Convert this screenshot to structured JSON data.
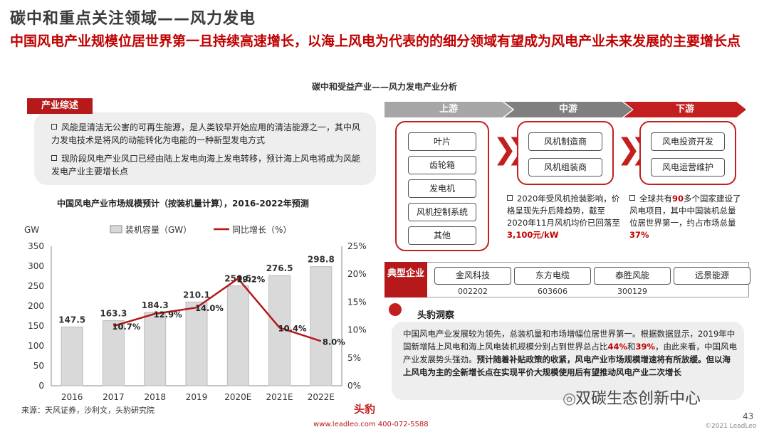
{
  "header": {
    "title": "碳中和重点关注领域——风力发电",
    "subtitle": "中国风电产业规模位居世界第一且持续高速增长，以海上风电为代表的的细分领域有望成为风电产业未来发展的主要增长点",
    "center_heading": "碳中和受益产业——风力发电产业分析"
  },
  "overview": {
    "tab": "产业综述",
    "items": [
      "风能是清洁无公害的可再生能源，是人类较早开始应用的清洁能源之一，其中风力发电技术是将风的动能转化为电能的一种新型发电方式",
      "现阶段风电产业风口已经由陆上发电向海上发电转移，预计海上风电将成为风能发电产业主要增长点"
    ]
  },
  "chart_title": "中国风电产业市场规模预计（按装机量计算），2016-2022年预测",
  "chart_data": {
    "type": "bar",
    "categories": [
      "2016",
      "2017",
      "2018",
      "2019",
      "2020E",
      "2021E",
      "2022E"
    ],
    "series": [
      {
        "name": "装机容量（GW）",
        "type": "bar",
        "values": [
          147.5,
          163.3,
          184.3,
          210.1,
          250.5,
          276.5,
          298.8
        ],
        "labels": [
          "147.5",
          "163.3",
          "184.3",
          "210.1",
          "250.5",
          "276.5",
          "298.8"
        ]
      },
      {
        "name": "同比增长（%）",
        "type": "line",
        "axis": "right",
        "values": [
          null,
          10.7,
          12.9,
          14.0,
          19.2,
          10.4,
          8.0
        ],
        "labels": [
          "",
          "10.7%",
          "12.9%",
          "14.0%",
          "19.2%",
          "10.4%",
          "8.0%"
        ]
      }
    ],
    "left_unit": "GW",
    "left_ticks": [
      "0",
      "50",
      "100",
      "150",
      "200",
      "250",
      "300",
      "350"
    ],
    "right_ticks": [
      "0%",
      "5%",
      "10%",
      "15%",
      "20%",
      "25%"
    ],
    "ylim": [
      0,
      350
    ],
    "y2lim": [
      0,
      25
    ],
    "bar_color": "#d9d9d9",
    "line_color": "#b5191a"
  },
  "source": "来源：天风证券，沙利文，头豹研究院",
  "chain": {
    "stages": [
      "上游",
      "中游",
      "下游"
    ],
    "upstream": [
      "叶片",
      "齿轮箱",
      "发电机",
      "风机控制系统",
      "其他"
    ],
    "midstream": [
      "风机制造商",
      "风机组装商"
    ],
    "downstream": [
      "风电投资开发",
      "风电运营维护"
    ],
    "mid_note": {
      "a": "2020年受风机抢装影响，价格呈现先升后降趋势，截至2020年11月风机均价已回落至",
      "b": "3,100元/kW"
    },
    "down_note": {
      "a": "全球共有",
      "b": "90",
      "c": "多个国家建设了风电项目，其中中国装机总量位居世界第一，约占市场总量",
      "d": "37%"
    }
  },
  "companies": {
    "label": "典型企业",
    "items": [
      {
        "name": "金风科技",
        "code": "002202"
      },
      {
        "name": "东方电缆",
        "code": "603606"
      },
      {
        "name": "泰胜风能",
        "code": "300129"
      },
      {
        "name": "远景能源",
        "code": ""
      }
    ]
  },
  "insight": {
    "title": "头豹洞察",
    "p1": "中国风电产业发展较为领先，总装机量和市场增幅位居世界第一。根据数据显示，2019年中国新增陆上风电和海上风电装机规模分别占到世界总占比",
    "p1_pct1": "44%",
    "p1_and": "和",
    "p1_pct2": "39%",
    "p1_end": "，由此来看，中国风电产业发展势头强劲。",
    "p2": "预计随着补贴政策的收紧，风电产业市场规模增速将有所放缓。但以海上风电为主的全新增长点在实现平价大规模使用后有望推动风电产业二次增长"
  },
  "footer": {
    "logo": "头豹",
    "contact": "www.leadleo.com    400-072-5588",
    "page": "43",
    "copyright": "©2021 LeadLeo",
    "wechat": "双碳生态创新中心"
  }
}
